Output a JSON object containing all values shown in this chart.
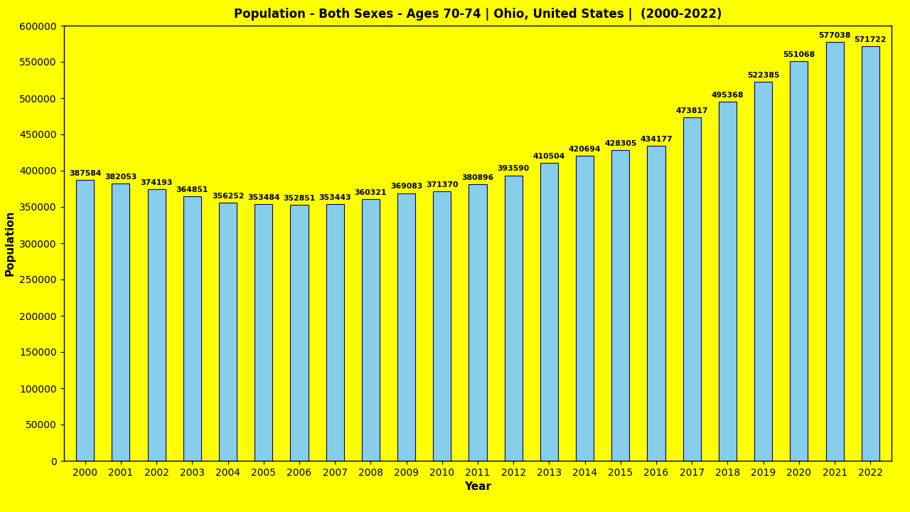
{
  "title": "Population - Both Sexes - Ages 70-74 | Ohio, United States |  (2000-2022)",
  "xlabel": "Year",
  "ylabel": "Population",
  "background_color": "#FFFF00",
  "bar_color": "#87CEEB",
  "bar_edge_color": "#000080",
  "years": [
    2000,
    2001,
    2002,
    2003,
    2004,
    2005,
    2006,
    2007,
    2008,
    2009,
    2010,
    2011,
    2012,
    2013,
    2014,
    2015,
    2016,
    2017,
    2018,
    2019,
    2020,
    2021,
    2022
  ],
  "values": [
    387584,
    382053,
    374193,
    364851,
    356252,
    353484,
    352851,
    353443,
    360321,
    369083,
    371370,
    380896,
    393590,
    410504,
    420694,
    428305,
    434177,
    473817,
    495368,
    522385,
    551068,
    577038,
    571722
  ],
  "ylim": [
    0,
    600000
  ],
  "yticks": [
    0,
    50000,
    100000,
    150000,
    200000,
    250000,
    300000,
    350000,
    400000,
    450000,
    500000,
    550000,
    600000
  ],
  "title_fontsize": 12,
  "label_fontsize": 11,
  "tick_fontsize": 10,
  "value_fontsize": 7.8,
  "bar_width": 0.5
}
